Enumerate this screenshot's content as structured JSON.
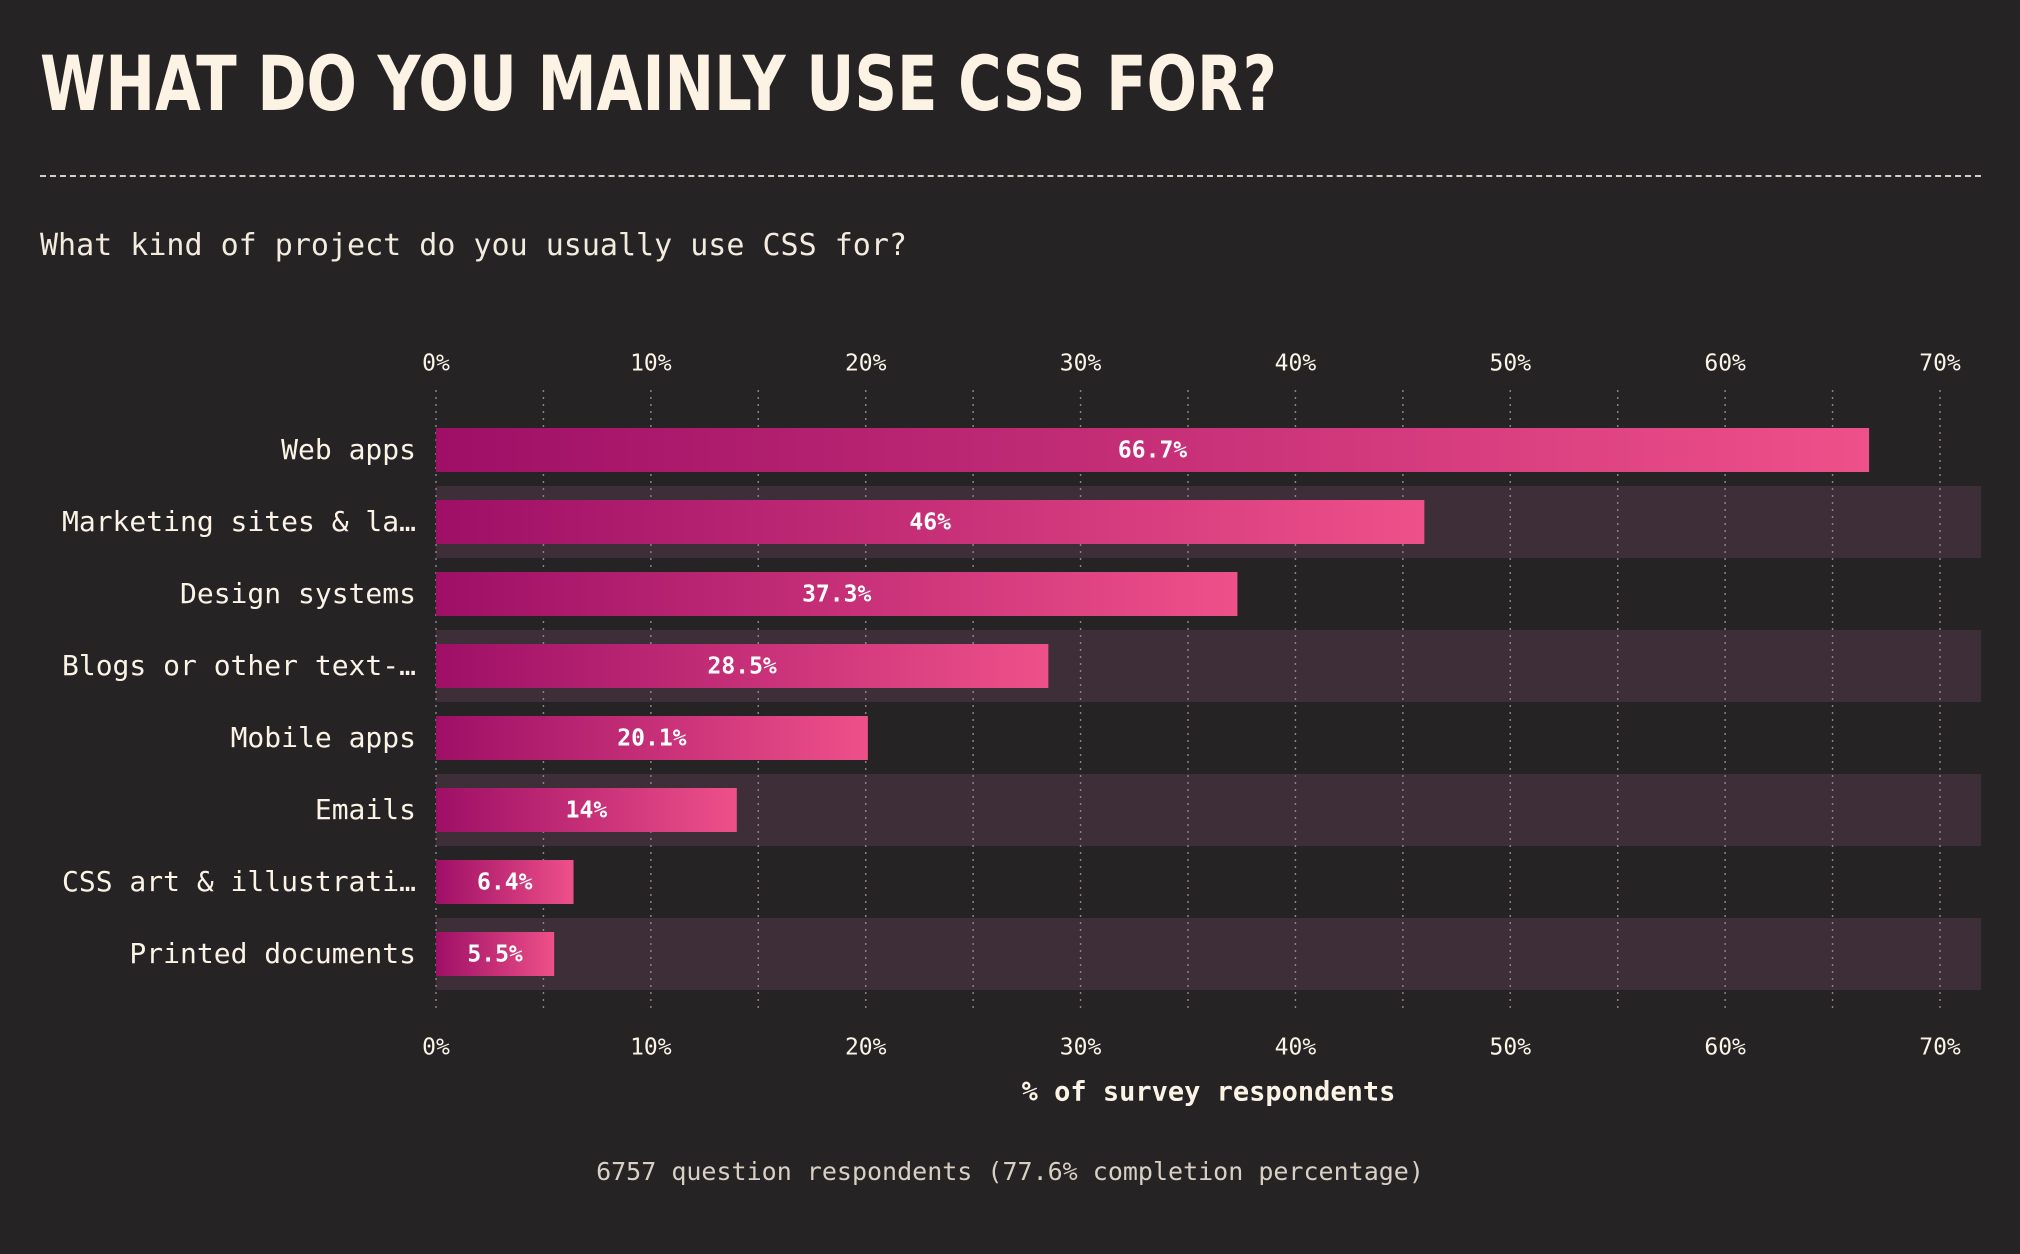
{
  "page": {
    "title": "WHAT DO YOU MAINLY USE CSS FOR?",
    "subtitle": "What kind of project do you usually use CSS for?",
    "footer": "6757 question respondents (77.6% completion percentage)"
  },
  "colors": {
    "background": "#262325",
    "band": "#3d2e38",
    "bar_start": "#9e0f66",
    "bar_end": "#ee5089",
    "text": "#fbf3e6",
    "grid": "#8a8088"
  },
  "chart_data": {
    "type": "bar",
    "orientation": "horizontal",
    "categories": [
      "Web apps",
      "Marketing sites & la…",
      "Design systems",
      "Blogs or other text-…",
      "Mobile apps",
      "Emails",
      "CSS art & illustrati…",
      "Printed documents"
    ],
    "values": [
      66.7,
      46,
      37.3,
      28.5,
      20.1,
      14,
      6.4,
      5.5
    ],
    "value_labels": [
      "66.7%",
      "46%",
      "37.3%",
      "28.5%",
      "20.1%",
      "14%",
      "6.4%",
      "5.5%"
    ],
    "xlabel": "% of survey respondents",
    "xlim": [
      0,
      70
    ],
    "x_ticks": [
      0,
      10,
      20,
      30,
      40,
      50,
      60,
      70
    ],
    "x_tick_labels": [
      "0%",
      "10%",
      "20%",
      "30%",
      "40%",
      "50%",
      "60%",
      "70%"
    ],
    "grid": true,
    "axis_position": "top-and-bottom",
    "alternating_row_bands": true
  }
}
